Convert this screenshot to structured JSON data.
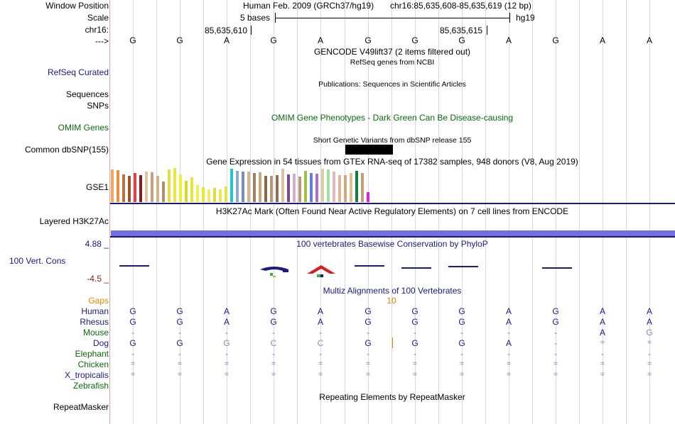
{
  "colors": {
    "navy": "#1a1a80",
    "green": "#0a6a0a",
    "gaps_label": "#e08a00",
    "cons_low": "#8b1a1a",
    "h3k27ac_bar": "#7070e0",
    "separator": "#1a1a80",
    "gridline": "#d6d6ee"
  },
  "header": {
    "window_label": "Window Position",
    "scale_label": "Scale",
    "chrom_label": "chr16:",
    "arrow_label": "--->",
    "assembly": "Human Feb. 2009 (GRCh37/hg19)",
    "position": "chr16:85,635,608-85,635,619 (12 bp)",
    "scale_text": "5 bases",
    "db": "hg19",
    "coord_left": "85,635,610",
    "coord_right": "85,635,615"
  },
  "bases": [
    "G",
    "G",
    "A",
    "G",
    "A",
    "G",
    "G",
    "G",
    "A",
    "G",
    "A",
    "A"
  ],
  "tracks": {
    "gencode_title": "GENCODE V49lift37 (2 items filtered out)",
    "refseq_subtitle": "RefSeq genes from NCBI",
    "refseq_label": "RefSeq Curated",
    "pubs_title": "Publications: Sequences in Scientific Articles",
    "sequences_label": "Sequences",
    "snps_label": "SNPs",
    "omim_title": "OMIM Gene Phenotypes - Dark Green Can Be Disease-causing",
    "omim_label": "OMIM Genes",
    "dbsnp_title": "Short Genetic Variants from dbSNP release 155",
    "dbsnp_label": "Common dbSNP(155)",
    "gtex_title": "Gene Expression in 54 tissues from GTEx RNA-seq of 17382 samples, 948 donors (V8, Aug 2019)",
    "gtex_label": "GSE1",
    "h3k27ac_title": "H3K27Ac Mark (Often Found Near Active Regulatory Elements) on 7 cell lines from ENCODE",
    "h3k27ac_label": "Layered H3K27Ac",
    "cons_max": "4.88 _",
    "cons_title": "100 vertebrates Basewise Conservation by PhyloP",
    "cons_label": "100 Vert. Cons",
    "cons_min": "-4.5 _",
    "multiz_title": "Multiz Alignments of 100 Vertebrates",
    "gaps_label": "Gaps",
    "gap_count": "10",
    "repeat_title": "Repeating Elements by RepeatMasker",
    "repeat_label": "RepeatMasker"
  },
  "gtex_bars": [
    {
      "color": "#f4a460",
      "value": 0.95
    },
    {
      "color": "#f08c3c",
      "value": 0.93
    },
    {
      "color": "#c07040",
      "value": 0.82
    },
    {
      "color": "#a0522d",
      "value": 0.78
    },
    {
      "color": "#e04040",
      "value": 0.85
    },
    {
      "color": "#8b1a1a",
      "value": 0.8
    },
    {
      "color": "#dcc8a0",
      "value": 0.9
    },
    {
      "color": "#c8a080",
      "value": 0.88
    },
    {
      "color": "#d2b48c",
      "value": 0.78
    },
    {
      "color": "#b09070",
      "value": 0.6
    },
    {
      "color": "#e0e040",
      "value": 0.95
    },
    {
      "color": "#e8e840",
      "value": 1.0
    },
    {
      "color": "#f0f030",
      "value": 0.82
    },
    {
      "color": "#d8d828",
      "value": 0.62
    },
    {
      "color": "#e6e63c",
      "value": 0.73
    },
    {
      "color": "#f0f050",
      "value": 0.5
    },
    {
      "color": "#e8e830",
      "value": 0.43
    },
    {
      "color": "#eeee60",
      "value": 0.37
    },
    {
      "color": "#dede40",
      "value": 0.41
    },
    {
      "color": "#e8e850",
      "value": 0.37
    },
    {
      "color": "#e4e448",
      "value": 0.45
    },
    {
      "color": "#20c8c8",
      "value": 0.98
    },
    {
      "color": "#90a8d0",
      "value": 0.91
    },
    {
      "color": "#7090c0",
      "value": 0.89
    },
    {
      "color": "#d4b48c",
      "value": 0.89
    },
    {
      "color": "#a08060",
      "value": 0.85
    },
    {
      "color": "#c8a878",
      "value": 0.87
    },
    {
      "color": "#8b6a40",
      "value": 0.78
    },
    {
      "color": "#b09878",
      "value": 0.78
    },
    {
      "color": "#907050",
      "value": 0.8
    },
    {
      "color": "#e0c0a0",
      "value": 0.98
    },
    {
      "color": "#7a4a9a",
      "value": 0.82
    },
    {
      "color": "#d0b0d0",
      "value": 0.84
    },
    {
      "color": "#b89878",
      "value": 0.76
    },
    {
      "color": "#a0c040",
      "value": 0.91
    },
    {
      "color": "#6080e0",
      "value": 0.85
    },
    {
      "color": "#b070c0",
      "value": 0.84
    },
    {
      "color": "#d8d0a0",
      "value": 0.98
    },
    {
      "color": "#a0e0a0",
      "value": 0.95
    },
    {
      "color": "#e8b8c0",
      "value": 0.89
    },
    {
      "color": "#dcb898",
      "value": 0.8
    },
    {
      "color": "#d4a880",
      "value": 0.8
    },
    {
      "color": "#e0c090",
      "value": 0.85
    },
    {
      "color": "#108040",
      "value": 0.91
    },
    {
      "color": "#c0a070",
      "value": 0.85
    },
    {
      "color": "#e020e0",
      "value": 0.3
    }
  ],
  "multiz": {
    "species": [
      {
        "name": "Human",
        "color": "#1a1a80",
        "row": [
          "G",
          "G",
          "A",
          "G",
          "A",
          "G",
          "G",
          "G",
          "A",
          "G",
          "A",
          "A"
        ]
      },
      {
        "name": "Rhesus",
        "color": "#1a1a80",
        "row": [
          "G",
          "G",
          "A",
          "G",
          "A",
          "G",
          "G",
          "G",
          "A",
          "G",
          "A",
          "A"
        ]
      },
      {
        "name": "Mouse",
        "color": "#0a6a0a",
        "row": [
          "-",
          "-",
          "-",
          "-",
          "-",
          "-",
          "-",
          "-",
          "-",
          "-",
          "A",
          "G"
        ]
      },
      {
        "name": "Dog",
        "color": "#1a1a80",
        "row": [
          "G",
          "G",
          "G",
          "C",
          "C",
          "G",
          "G",
          "G",
          "A",
          "-",
          "=",
          "="
        ]
      },
      {
        "name": "Elephant",
        "color": "#0a6a0a",
        "row": [
          "-",
          "-",
          "-",
          "-",
          "-",
          "-",
          "-",
          "-",
          "-",
          "-",
          "-",
          "-"
        ]
      },
      {
        "name": "Chicken",
        "color": "#0a6a0a",
        "row": [
          "=",
          "=",
          "=",
          "=",
          "=",
          "=",
          "=",
          "=",
          "=",
          "=",
          "=",
          "="
        ]
      },
      {
        "name": "X_tropicalis",
        "color": "#1a1a80",
        "row": [
          "=",
          "=",
          "=",
          "=",
          "=",
          "=",
          "=",
          "=",
          "=",
          "=",
          "=",
          "="
        ]
      },
      {
        "name": "Zebrafish",
        "color": "#0a6a0a",
        "row": [
          "",
          "",
          "",
          "",
          "",
          "",
          "",
          "",
          "",
          "",
          "",
          ""
        ]
      }
    ]
  }
}
